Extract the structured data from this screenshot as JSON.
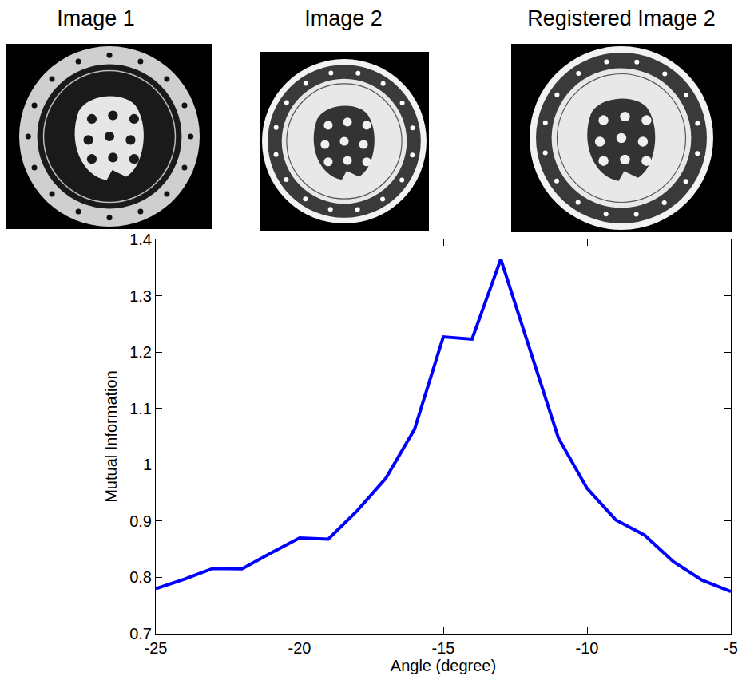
{
  "panels": [
    "Image 1",
    "Image 2",
    "Registered Image 2"
  ],
  "chart_data": {
    "type": "line",
    "x_label": "Angle (degree)",
    "y_label": "Mutual Information",
    "x": [
      -25,
      -24,
      -23,
      -22,
      -21,
      -20,
      -19,
      -18,
      -17,
      -16,
      -15,
      -14,
      -13,
      -12,
      -11,
      -10,
      -9,
      -8,
      -7,
      -6,
      -5
    ],
    "values": [
      0.78,
      0.797,
      0.816,
      0.815,
      0.843,
      0.87,
      0.868,
      0.918,
      0.976,
      1.063,
      1.227,
      1.223,
      1.365,
      1.205,
      1.048,
      0.958,
      0.902,
      0.875,
      0.828,
      0.795,
      0.775
    ],
    "color": "#0000ff",
    "xlim": [
      -25,
      -5
    ],
    "ylim": [
      0.7,
      1.4
    ],
    "xticks": [
      -25,
      -20,
      -15,
      -10,
      -5
    ],
    "yticks": [
      0.7,
      0.8,
      0.9,
      1,
      1.1,
      1.2,
      1.3,
      1.4
    ],
    "grid": false
  }
}
